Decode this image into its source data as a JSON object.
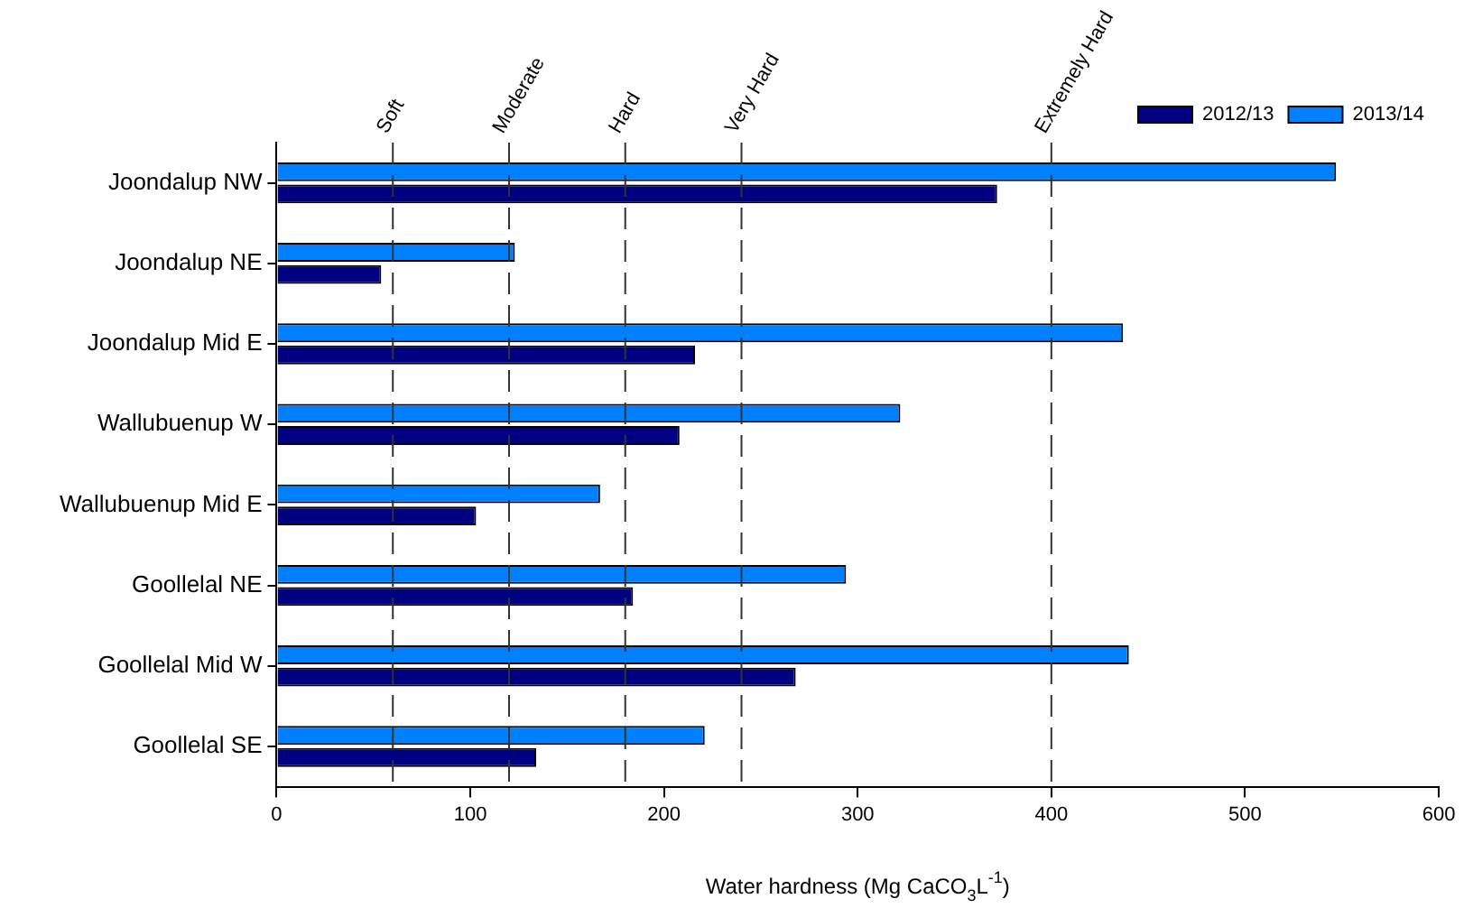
{
  "chart_data": {
    "type": "bar",
    "orientation": "horizontal",
    "xlabel": "Water hardness (Mg CaCO$_{3}$L$^{-1}$)",
    "categories": [
      "Joondalup NW",
      "Joondalup NE",
      "Joondalup Mid E",
      "Wallubuenup W",
      "Wallubuenup Mid E",
      "Goollelal NE",
      "Goollelal Mid W",
      "Goollelal SE"
    ],
    "series": [
      {
        "name": "2012/13",
        "color": "#000080",
        "values": [
          372,
          54,
          216,
          208,
          103,
          184,
          268,
          134
        ]
      },
      {
        "name": "2013/14",
        "color": "#0080ff",
        "values": [
          547,
          123,
          437,
          322,
          167,
          294,
          440,
          221
        ]
      }
    ],
    "xlim": [
      0,
      600
    ],
    "xticks": [
      0,
      100,
      200,
      300,
      400,
      500,
      600
    ],
    "ref_lines": [
      {
        "axis": "x",
        "value": 60,
        "label": "Soft",
        "color": "#333333",
        "line_style": "dashed"
      },
      {
        "axis": "x",
        "value": 120,
        "label": "Moderate",
        "color": "#333333",
        "line_style": "dashed"
      },
      {
        "axis": "x",
        "value": 180,
        "label": "Hard",
        "color": "#333333",
        "line_style": "dashed"
      },
      {
        "axis": "x",
        "value": 240,
        "label": "Very Hard",
        "color": "#333333",
        "line_style": "dashed"
      },
      {
        "axis": "x",
        "value": 400,
        "label": "Extremely Hard",
        "color": "#333333",
        "line_style": "dashed"
      }
    ],
    "legend": "top right"
  }
}
